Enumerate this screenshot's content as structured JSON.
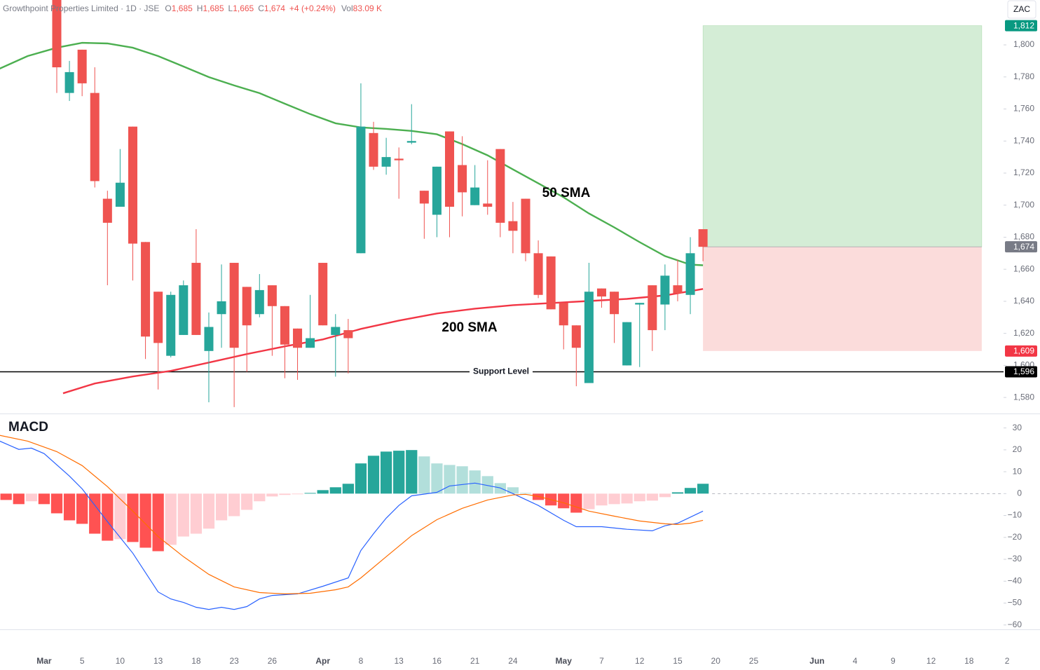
{
  "chart_data": [
    {
      "type": "candlestick",
      "header": {
        "symbol": "Growthpoint Properties Limited · 1D · JSE",
        "ohlc": [
          [
            "O",
            "1,685"
          ],
          [
            "H",
            "1,685"
          ],
          [
            "L",
            "1,665"
          ],
          [
            "C",
            "1,674"
          ]
        ],
        "change": "+4 (+0.24%)",
        "volume_label": "Vol",
        "volume": "83.09 K"
      },
      "currency": "ZAC",
      "up_color": "#26a69a",
      "down_color": "#ef5350",
      "open": [
        1835,
        1770,
        1797,
        1770,
        1704,
        1699,
        1749,
        1677,
        1646,
        1606,
        1619,
        1664,
        1609,
        1632,
        1664,
        1649,
        1632,
        1650,
        1637,
        1623,
        1611,
        1664,
        1619,
        1622,
        1670,
        1745,
        1724,
        1729,
        1739,
        1709,
        1694,
        1746,
        1725,
        1700,
        1701,
        1735,
        1690,
        1704,
        1670,
        1668,
        1639,
        1625,
        1589,
        1648,
        1646,
        1600,
        1638,
        1650,
        1638,
        1650,
        1644,
        1685
      ],
      "high": [
        1850,
        1790,
        1797,
        1786,
        1709,
        1735,
        1749,
        1677,
        1646,
        1646,
        1653,
        1685,
        1633,
        1663,
        1664,
        1649,
        1657,
        1650,
        1637,
        1623,
        1644,
        1664,
        1632,
        1629,
        1776,
        1752,
        1742,
        1736,
        1763,
        1709,
        1724,
        1746,
        1743,
        1725,
        1728,
        1735,
        1702,
        1704,
        1678,
        1668,
        1639,
        1625,
        1664,
        1648,
        1646,
        1627,
        1639,
        1650,
        1663,
        1666,
        1680,
        1685
      ],
      "low": [
        1770,
        1765,
        1768,
        1711,
        1650,
        1699,
        1653,
        1604,
        1585,
        1605,
        1619,
        1619,
        1577,
        1611,
        1574,
        1596,
        1630,
        1606,
        1592,
        1591,
        1611,
        1625,
        1593,
        1595,
        1670,
        1722,
        1719,
        1704,
        1738,
        1679,
        1680,
        1680,
        1693,
        1700,
        1694,
        1680,
        1670,
        1665,
        1642,
        1635,
        1610,
        1587,
        1589,
        1636,
        1614,
        1600,
        1599,
        1609,
        1622,
        1640,
        1632,
        1665
      ],
      "close": [
        1786,
        1783,
        1776,
        1715,
        1689,
        1714,
        1676,
        1618,
        1614,
        1644,
        1650,
        1619,
        1624,
        1640,
        1611,
        1625,
        1647,
        1637,
        1613,
        1611,
        1617,
        1625,
        1624,
        1617,
        1749,
        1724,
        1730,
        1728,
        1740,
        1701,
        1724,
        1699,
        1708,
        1711,
        1699,
        1689,
        1684,
        1670,
        1644,
        1635,
        1625,
        1611,
        1646,
        1643,
        1632,
        1627,
        1639,
        1622,
        1656,
        1645,
        1670,
        1674
      ],
      "series": [
        {
          "name": "50 SMA",
          "color": "#4caf50",
          "x": [
            -4.5,
            -2.3,
            0,
            2,
            4,
            6,
            8,
            10,
            12,
            14,
            16,
            18,
            20,
            22,
            24,
            26,
            28,
            30,
            32,
            34,
            36,
            38,
            40,
            42,
            44,
            46,
            48,
            50,
            51
          ],
          "values": [
            1785.2,
            1793,
            1798.2,
            1801.3,
            1800.9,
            1798.2,
            1793,
            1786.5,
            1779.9,
            1774.7,
            1769.9,
            1763.3,
            1756.8,
            1751.1,
            1748.5,
            1747.6,
            1746.3,
            1744.2,
            1738.1,
            1731.1,
            1722.3,
            1713.6,
            1704.9,
            1694.8,
            1686.1,
            1676.9,
            1668.2,
            1662.9,
            1662.5
          ]
        },
        {
          "name": "200 SMA",
          "color": "#f23645",
          "x": [
            0.5,
            3,
            6,
            9,
            12,
            15,
            18,
            21,
            24,
            27,
            30,
            33,
            36,
            39,
            42,
            45,
            48,
            51
          ],
          "values": [
            1582.6,
            1588.7,
            1593.1,
            1596.6,
            1601.8,
            1607.1,
            1611.9,
            1616.2,
            1622.8,
            1628,
            1632.4,
            1635.4,
            1637.6,
            1638.9,
            1640.2,
            1641.5,
            1643.7,
            1647.7
          ]
        }
      ],
      "support": {
        "value": 1596,
        "label": "Support Level"
      },
      "position": {
        "entry": 1674,
        "target": 1812,
        "stop": 1609,
        "x": [
          51,
          73
        ],
        "profit_color": "#d4edd6",
        "loss_color": "#fbdcdb"
      },
      "price_labels": [
        {
          "value": 1812,
          "label": "1,812",
          "color": "#089981"
        },
        {
          "value": 1674,
          "label": "1,674",
          "color": "#787b86"
        },
        {
          "value": 1609,
          "label": "1,609",
          "color": "#f23645"
        },
        {
          "value": 1596,
          "label": "1,596",
          "color": "#000000"
        }
      ],
      "xlim": [
        -4.48,
        74.72
      ],
      "xticks": [
        {
          "value": -1,
          "label": "Mar"
        },
        {
          "value": 2,
          "label": "5"
        },
        {
          "value": 5,
          "label": "10"
        },
        {
          "value": 8,
          "label": "13"
        },
        {
          "value": 11,
          "label": "18"
        },
        {
          "value": 14,
          "label": "23"
        },
        {
          "value": 17,
          "label": "26"
        },
        {
          "value": 21,
          "label": "Apr"
        },
        {
          "value": 24,
          "label": "8"
        },
        {
          "value": 27,
          "label": "13"
        },
        {
          "value": 30,
          "label": "16"
        },
        {
          "value": 33,
          "label": "21"
        },
        {
          "value": 36,
          "label": "24"
        },
        {
          "value": 40,
          "label": "May"
        },
        {
          "value": 43,
          "label": "7"
        },
        {
          "value": 46,
          "label": "12"
        },
        {
          "value": 49,
          "label": "15"
        },
        {
          "value": 52,
          "label": "20"
        },
        {
          "value": 55,
          "label": "25"
        },
        {
          "value": 60,
          "label": "Jun"
        },
        {
          "value": 63,
          "label": "4"
        },
        {
          "value": 66,
          "label": "9"
        },
        {
          "value": 69,
          "label": "12"
        },
        {
          "value": 72,
          "label": "18"
        },
        {
          "value": 75,
          "label": "2"
        }
      ],
      "ylim": [
        1570,
        1828
      ],
      "yticks": [
        {
          "value": 1580,
          "label": "1,580"
        },
        {
          "value": 1600,
          "label": "1,600"
        },
        {
          "value": 1620,
          "label": "1,620"
        },
        {
          "value": 1640,
          "label": "1,640"
        },
        {
          "value": 1660,
          "label": "1,660"
        },
        {
          "value": 1680,
          "label": "1,680"
        },
        {
          "value": 1700,
          "label": "1,700"
        },
        {
          "value": 1720,
          "label": "1,720"
        },
        {
          "value": 1740,
          "label": "1,740"
        },
        {
          "value": 1760,
          "label": "1,760"
        },
        {
          "value": 1780,
          "label": "1,780"
        },
        {
          "value": 1800,
          "label": "1,800"
        }
      ],
      "grid": false
    },
    {
      "type": "macd",
      "title": "MACD",
      "histogram": {
        "colors": [
          "#26a69a",
          "#b2dfdb",
          "#ffcdd2",
          "#ff5252"
        ],
        "x": [
          -4,
          -3,
          -2,
          -1,
          0,
          1,
          2,
          3,
          4,
          5,
          6,
          7,
          8,
          9,
          10,
          11,
          12,
          13,
          14,
          15,
          16,
          17,
          18,
          19,
          20,
          21,
          22,
          23,
          24,
          25,
          26,
          27,
          28,
          29,
          30,
          31,
          32,
          33,
          34,
          35,
          36,
          37,
          38,
          39,
          40,
          41,
          42,
          43,
          44,
          45,
          46,
          47,
          48,
          49,
          50,
          51
        ],
        "values": [
          -2.9,
          -4.8,
          -3.5,
          -4.8,
          -9,
          -12.2,
          -13.8,
          -18.3,
          -21.5,
          -20.8,
          -22.1,
          -24.7,
          -26.3,
          -23.4,
          -19.6,
          -18.3,
          -16,
          -12.2,
          -10.3,
          -7.4,
          -3.5,
          -1.3,
          -0.6,
          -0.3,
          0.3,
          1.6,
          2.9,
          4.5,
          13.8,
          17.3,
          19.2,
          19.6,
          19.9,
          17,
          13.8,
          13.1,
          12.5,
          10.6,
          8,
          4.8,
          2.9,
          0.3,
          -2.9,
          -5.4,
          -6.7,
          -8.7,
          -7.1,
          -5.4,
          -4.8,
          -4.5,
          -3.5,
          -3.2,
          -1.6,
          0.6,
          2.6,
          4.5
        ]
      },
      "series": [
        {
          "color": "#2962ff",
          "x": [
            -4.5,
            -3,
            -2,
            -1,
            1,
            2,
            4,
            6,
            8,
            9,
            10,
            11,
            12,
            13,
            14,
            15,
            16,
            17,
            19,
            21,
            23,
            24,
            25,
            26,
            27,
            28,
            30,
            31,
            33,
            35,
            36,
            38,
            40,
            41,
            43,
            45,
            47,
            48,
            49,
            51
          ],
          "values": [
            24,
            20.2,
            20.8,
            18.3,
            8,
            2.2,
            -12.8,
            -27.2,
            -44.9,
            -48.1,
            -49.7,
            -51.9,
            -52.9,
            -51.9,
            -52.9,
            -51.6,
            -48.1,
            -46.5,
            -45.8,
            -42.3,
            -38.5,
            -26,
            -18.3,
            -11.2,
            -5.4,
            -1,
            0.6,
            3.5,
            4.8,
            2.6,
            0,
            -5.4,
            -12.2,
            -15.1,
            -15.1,
            -16.3,
            -17,
            -14.7,
            -13.5,
            -8
          ]
        },
        {
          "color": "#ff6d00",
          "x": [
            -4.5,
            -2.3,
            0,
            2,
            4,
            6,
            8,
            10,
            12,
            14,
            16,
            18,
            20,
            22,
            23,
            24,
            26,
            28,
            30,
            32,
            34,
            36,
            37,
            38,
            40,
            42,
            44,
            46,
            48,
            49,
            50,
            51
          ],
          "values": [
            26.6,
            24,
            19.2,
            12.8,
            3.2,
            -8,
            -19.6,
            -28.8,
            -36.9,
            -42.6,
            -45.2,
            -45.8,
            -45.5,
            -43.9,
            -42.6,
            -38.5,
            -28.8,
            -19.2,
            -11.9,
            -6.7,
            -2.9,
            -0.6,
            -0.3,
            -1.3,
            -4.2,
            -8,
            -10.3,
            -12.5,
            -13.8,
            -14.1,
            -13.5,
            -12.2
          ]
        }
      ],
      "xlim": [
        -4.48,
        74.72
      ],
      "ylim": [
        -62,
        35
      ],
      "yticks": [
        30,
        20,
        10,
        0,
        {
          "value": -10,
          "label": "−10"
        },
        {
          "value": -20,
          "label": "−20"
        },
        {
          "value": -30,
          "label": "−30"
        },
        {
          "value": -40,
          "label": "−40"
        },
        {
          "value": -50,
          "label": "−50"
        },
        {
          "value": -60,
          "label": "−60"
        }
      ]
    }
  ]
}
